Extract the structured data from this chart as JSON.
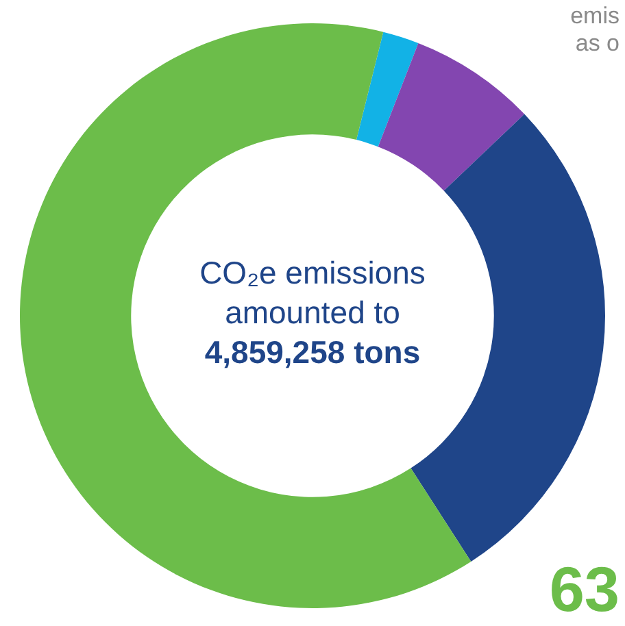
{
  "chart_data": {
    "type": "donut",
    "title": "CO₂e emissions amounted to",
    "subtitle": "4,859,258 tons",
    "categories": [
      null,
      null,
      null,
      null
    ],
    "values": [
      2,
      7,
      28,
      63
    ],
    "colors": [
      "#12b2e6",
      "#8346b0",
      "#1f4589",
      "#6cbd4a"
    ],
    "annotations": [
      "emis",
      "as o",
      "63"
    ],
    "legend": false
  }
}
